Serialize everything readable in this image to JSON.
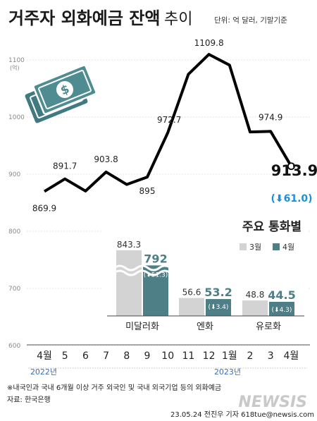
{
  "header": {
    "title_main": "거주자 외화예금 잔액",
    "title_sub": "추이",
    "unit": "단위: 억 달러, 기말기준"
  },
  "chart_data": [
    {
      "type": "line",
      "x": [
        "4월",
        "5",
        "6",
        "7",
        "8",
        "9",
        "10",
        "11",
        "12",
        "1월",
        "2",
        "3",
        "4월"
      ],
      "year_labels": [
        "2022년",
        "2023년"
      ],
      "series": [
        {
          "values": [
            869.9,
            891.7,
            870.5,
            903.8,
            882.0,
            895,
            972.7,
            1075.0,
            1109.8,
            1091.0,
            974.0,
            974.9,
            913.9
          ],
          "data_labels": [
            "869.9",
            "891.7",
            "",
            "903.8",
            "",
            "895",
            "972.7",
            "",
            "1109.8",
            "",
            "",
            "974.9",
            "913.9"
          ]
        }
      ],
      "yticks": [
        "600",
        "700",
        "800",
        "900",
        "1000",
        "1100"
      ],
      "y_unit_label": "(억)",
      "ylim": [
        600,
        1150
      ],
      "grid": true,
      "last_change_label": "(⬇61.0)",
      "last_change": -61.0,
      "colors": {
        "line": "#000000",
        "change": "#1f8fd6"
      }
    },
    {
      "type": "bar",
      "title": "주요 통화별",
      "categories": [
        "미달러화",
        "엔화",
        "유로화"
      ],
      "series": [
        {
          "name": "3월",
          "values": [
            843.3,
            56.6,
            48.8
          ],
          "labels": [
            "843.3",
            "56.6",
            "48.8"
          ]
        },
        {
          "name": "4월",
          "values": [
            792,
            53.2,
            44.5
          ],
          "labels": [
            "792",
            "53.2",
            "44.5"
          ]
        }
      ],
      "change_labels": [
        "(⬇51.3)",
        "(⬇3.4)",
        "(⬇4.3)"
      ],
      "changes": [
        -51.3,
        -3.4,
        -4.3
      ],
      "axis_break": true,
      "colors": {
        "3월": "#d3d3d3",
        "4월": "#4e7f86"
      }
    }
  ],
  "footer": {
    "note": "※내국인과 국내 6개월 이상 거주 외국인 및 국내 외국기업 등의 외화예금",
    "source": "자료: 한국은행",
    "credit": "23.05.24 전진우 기자 618tue@newsis.com",
    "watermark": "NEWSIS"
  },
  "colors": {
    "title": "#1a1a1a",
    "teal": "#4e7f86",
    "grey_bar": "#d3d3d3"
  }
}
